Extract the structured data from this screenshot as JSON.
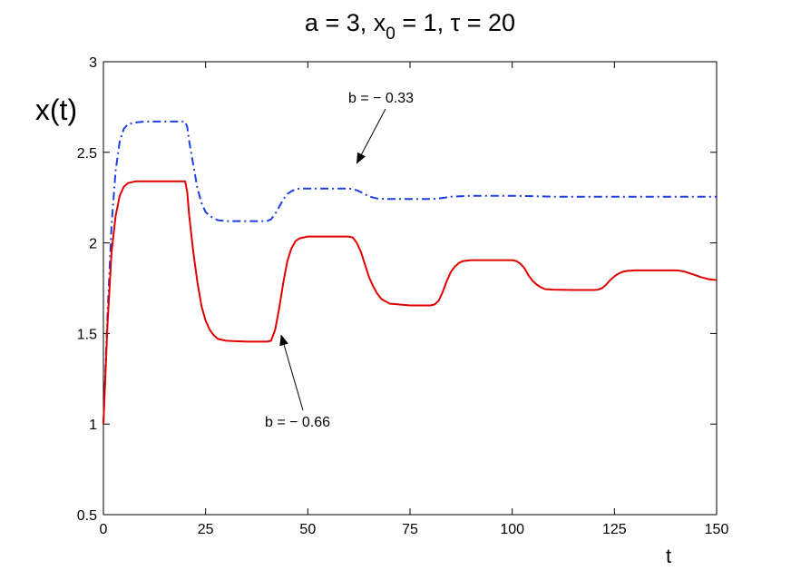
{
  "chart_data": {
    "type": "line",
    "title": {
      "a": "a = 3, x",
      "sub": "0",
      "b": " = 1, τ = 20"
    },
    "xlabel": "t",
    "ylabel": "x(t)",
    "xlim": [
      0,
      150
    ],
    "ylim": [
      0.5,
      3
    ],
    "xticks": [
      "0",
      "25",
      "50",
      "75",
      "100",
      "125",
      "150"
    ],
    "yticks": [
      "0.5",
      "1",
      "1.5",
      "2",
      "2.5",
      "3"
    ],
    "grid": false,
    "series": [
      {
        "key": "b033",
        "color": "#1f3fe0",
        "dash": "dashdot",
        "x": [
          0,
          1,
          2,
          3,
          4,
          5,
          6,
          8,
          10,
          15,
          20,
          20.5,
          21,
          22,
          23,
          24,
          25,
          26,
          27,
          28,
          30,
          35,
          40,
          41,
          42,
          43,
          44,
          45,
          46,
          47,
          48,
          50,
          55,
          60,
          61,
          62,
          63,
          64,
          65,
          66,
          67,
          68,
          70,
          75,
          80,
          82,
          85,
          90,
          95,
          100,
          105,
          110,
          120,
          130,
          140,
          150
        ],
        "y": [
          1.0,
          1.6,
          2.1,
          2.4,
          2.56,
          2.63,
          2.655,
          2.665,
          2.67,
          2.67,
          2.67,
          2.64,
          2.56,
          2.43,
          2.3,
          2.22,
          2.17,
          2.15,
          2.135,
          2.125,
          2.12,
          2.12,
          2.12,
          2.13,
          2.16,
          2.2,
          2.24,
          2.27,
          2.285,
          2.295,
          2.3,
          2.3,
          2.3,
          2.3,
          2.297,
          2.29,
          2.28,
          2.268,
          2.257,
          2.25,
          2.245,
          2.243,
          2.242,
          2.242,
          2.242,
          2.245,
          2.255,
          2.26,
          2.26,
          2.26,
          2.258,
          2.255,
          2.255,
          2.255,
          2.255,
          2.255
        ]
      },
      {
        "key": "b066",
        "color": "#e00000",
        "dash": "solid",
        "x": [
          0,
          1,
          2,
          3,
          4,
          5,
          6,
          8,
          10,
          15,
          20,
          20.5,
          21,
          22,
          23,
          24,
          25,
          26,
          27,
          28,
          30,
          35,
          40,
          41,
          42,
          43,
          44,
          45,
          46,
          47,
          48,
          50,
          55,
          60,
          61,
          62,
          63,
          64,
          65,
          66,
          67,
          68,
          70,
          75,
          80,
          81,
          82,
          83,
          84,
          85,
          86,
          87,
          88,
          90,
          95,
          100,
          101,
          102,
          103,
          104,
          105,
          106,
          107,
          108,
          110,
          115,
          120,
          121,
          122,
          123,
          124,
          125,
          126,
          127,
          128,
          130,
          135,
          140,
          141,
          142,
          143,
          144,
          145,
          146,
          147,
          148,
          149,
          150
        ],
        "y": [
          1.0,
          1.55,
          1.95,
          2.15,
          2.26,
          2.31,
          2.33,
          2.34,
          2.34,
          2.34,
          2.34,
          2.28,
          2.15,
          1.95,
          1.78,
          1.65,
          1.57,
          1.52,
          1.49,
          1.47,
          1.46,
          1.455,
          1.455,
          1.46,
          1.52,
          1.64,
          1.78,
          1.9,
          1.97,
          2.01,
          2.025,
          2.035,
          2.035,
          2.035,
          2.03,
          2.0,
          1.95,
          1.88,
          1.81,
          1.76,
          1.72,
          1.69,
          1.665,
          1.655,
          1.655,
          1.66,
          1.68,
          1.73,
          1.79,
          1.84,
          1.87,
          1.89,
          1.9,
          1.905,
          1.905,
          1.905,
          1.9,
          1.885,
          1.86,
          1.82,
          1.79,
          1.77,
          1.755,
          1.745,
          1.742,
          1.74,
          1.74,
          1.742,
          1.75,
          1.77,
          1.795,
          1.815,
          1.83,
          1.84,
          1.845,
          1.848,
          1.848,
          1.848,
          1.846,
          1.842,
          1.835,
          1.828,
          1.82,
          1.812,
          1.806,
          1.8,
          1.797,
          1.795
        ]
      }
    ],
    "annotations": [
      {
        "text": "b = − 0.33",
        "series": "b033",
        "tip": [
          62,
          2.44
        ]
      },
      {
        "text": "b = − 0.66",
        "series": "b066",
        "tip": [
          43.5,
          1.49
        ]
      }
    ]
  }
}
